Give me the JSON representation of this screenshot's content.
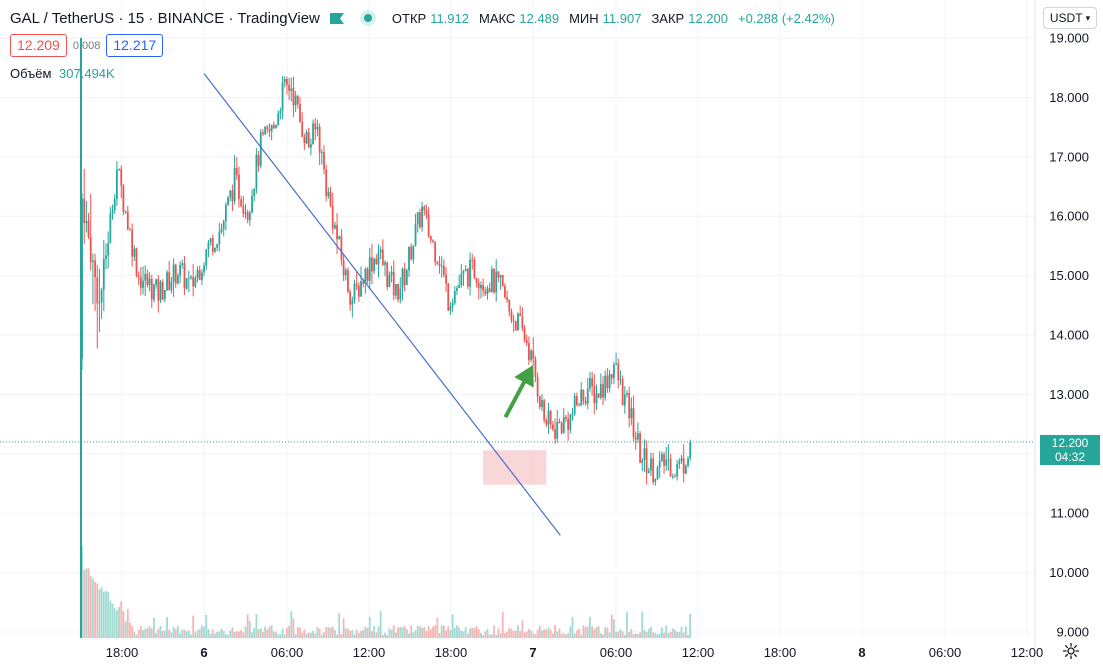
{
  "header": {
    "symbol": "GAL / TetherUS",
    "interval": "15",
    "exchange": "BINANCE",
    "source": "TradingView",
    "ohlc": [
      {
        "key": "ОТКР",
        "value": "11.912"
      },
      {
        "key": "МАКС",
        "value": "12.489"
      },
      {
        "key": "МИН",
        "value": "11.907"
      },
      {
        "key": "ЗАКР",
        "value": "12.200"
      },
      {
        "key": "",
        "value": "+0.288 (+2.42%)"
      }
    ]
  },
  "quotes": {
    "bid": "12.209",
    "spread": "0.008",
    "ask": "12.217"
  },
  "volume": {
    "label": "Объём",
    "value": "307.494K"
  },
  "currency_selector": "USDT",
  "price_label": {
    "price": "12.200",
    "countdown": "04:32"
  },
  "colors": {
    "up": "#26a69a",
    "down": "#ef5350",
    "trendline": "#4a70c9",
    "arrow": "#43a047",
    "zone": "#f7c5c8"
  },
  "chart_data": {
    "type": "candlestick",
    "title": "",
    "y_ticks": [
      "19.000",
      "18.000",
      "17.000",
      "16.000",
      "15.000",
      "14.000",
      "13.000",
      "12.000",
      "11.000",
      "10.000",
      "9.000"
    ],
    "x_ticks": [
      "18:00",
      "6",
      "06:00",
      "12:00",
      "18:00",
      "7",
      "06:00",
      "12:00",
      "18:00",
      "8",
      "06:00",
      "12:00"
    ],
    "ylim": [
      9.0,
      19.0
    ],
    "current_price": 12.2,
    "close_path": [
      [
        0,
        16.3
      ],
      [
        8,
        14.5
      ],
      [
        16,
        16.8
      ],
      [
        26,
        15.0
      ],
      [
        35,
        14.7
      ],
      [
        44,
        15.1
      ],
      [
        50,
        14.8
      ],
      [
        58,
        15.5
      ],
      [
        64,
        15.8
      ],
      [
        70,
        16.6
      ],
      [
        76,
        16.1
      ],
      [
        82,
        17.2
      ],
      [
        88,
        17.5
      ],
      [
        92,
        18.1
      ],
      [
        96,
        18.2
      ],
      [
        100,
        17.6
      ],
      [
        104,
        17.2
      ],
      [
        108,
        17.5
      ],
      [
        112,
        16.5
      ],
      [
        116,
        15.8
      ],
      [
        120,
        15.1
      ],
      [
        124,
        14.6
      ],
      [
        128,
        14.9
      ],
      [
        132,
        15.2
      ],
      [
        136,
        15.4
      ],
      [
        140,
        15.0
      ],
      [
        144,
        14.7
      ],
      [
        148,
        15.0
      ],
      [
        152,
        15.6
      ],
      [
        156,
        16.1
      ],
      [
        160,
        15.6
      ],
      [
        164,
        15.3
      ],
      [
        168,
        14.6
      ],
      [
        172,
        14.8
      ],
      [
        176,
        15.0
      ],
      [
        180,
        15.1
      ],
      [
        184,
        14.9
      ],
      [
        188,
        14.9
      ],
      [
        192,
        14.8
      ],
      [
        196,
        14.4
      ],
      [
        200,
        14.2
      ],
      [
        204,
        13.9
      ],
      [
        208,
        13.3
      ],
      [
        212,
        12.6
      ],
      [
        216,
        12.4
      ],
      [
        220,
        12.5
      ],
      [
        224,
        12.6
      ],
      [
        228,
        12.9
      ],
      [
        232,
        13.1
      ],
      [
        236,
        13.0
      ],
      [
        240,
        13.2
      ],
      [
        244,
        13.5
      ],
      [
        248,
        13.0
      ],
      [
        252,
        12.6
      ],
      [
        256,
        12.0
      ],
      [
        260,
        11.8
      ],
      [
        264,
        11.7
      ],
      [
        268,
        11.9
      ],
      [
        272,
        11.75
      ],
      [
        276,
        11.85
      ],
      [
        279,
        12.2
      ]
    ],
    "trendline": {
      "from": {
        "bar": 56,
        "price": 18.4
      },
      "to": {
        "bar": 213,
        "price": 11.3
      }
    },
    "zone": {
      "bar_from": 184,
      "bar_to": 213,
      "price_low": 11.48,
      "price_high": 12.06
    },
    "arrow": {
      "bar": 208,
      "price_from": 12.55,
      "price_to": 13.5
    }
  }
}
